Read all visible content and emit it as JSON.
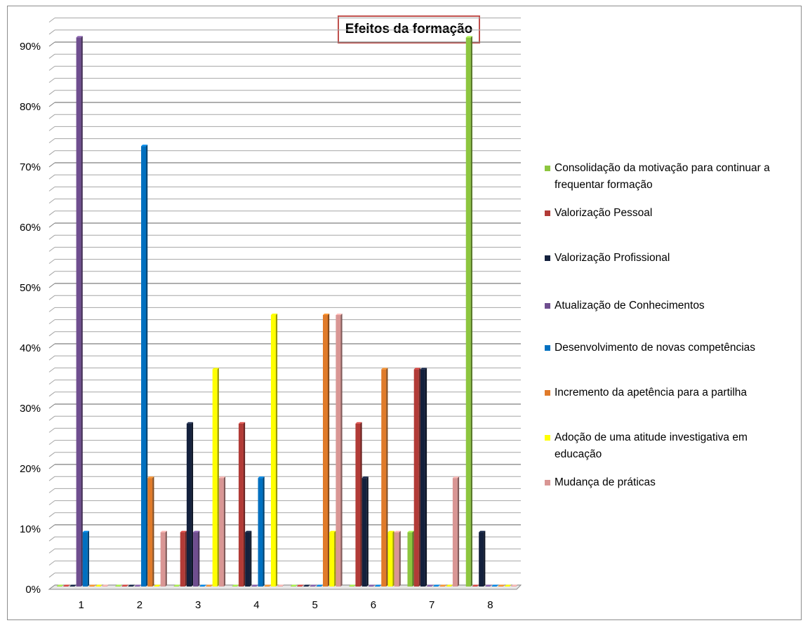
{
  "chart_data": {
    "type": "bar",
    "title": "Efeitos da formação",
    "categories": [
      "1",
      "2",
      "3",
      "4",
      "5",
      "6",
      "7",
      "8"
    ],
    "y_ticks": [
      "0%",
      "10%",
      "20%",
      "30%",
      "40%",
      "50%",
      "60%",
      "70%",
      "80%",
      "90%"
    ],
    "ylim": [
      0,
      0.9
    ],
    "grid": true,
    "legend_position": "right",
    "series": [
      {
        "name": "Consolidação da motivação para continuar a frequentar formação",
        "color": "#8dc63f",
        "values": [
          0,
          0,
          0,
          0,
          0,
          0,
          0.09,
          0.91
        ]
      },
      {
        "name": "Valorização Pessoal",
        "color": "#b23b37",
        "values": [
          0,
          0,
          0.09,
          0.27,
          0,
          0.27,
          0.36,
          0
        ]
      },
      {
        "name": "Valorização Profissional",
        "color": "#14213d",
        "values": [
          0,
          0,
          0.27,
          0.09,
          0,
          0.18,
          0.36,
          0.09
        ]
      },
      {
        "name": "Atualização de Conhecimentos",
        "color": "#6f4e8f",
        "values": [
          0.91,
          0,
          0.09,
          0,
          0,
          0,
          0,
          0
        ]
      },
      {
        "name": "Desenvolvimento de novas competências",
        "color": "#0070c0",
        "values": [
          0.09,
          0.73,
          0,
          0.18,
          0,
          0,
          0,
          0
        ]
      },
      {
        "name": "Incremento da apetência para a partilha",
        "color": "#e07b2a",
        "values": [
          0,
          0.18,
          0,
          0,
          0.45,
          0.36,
          0,
          0
        ]
      },
      {
        "name": "Adoção de uma atitude investigativa em educação",
        "color": "#ffff00",
        "values": [
          0,
          0,
          0.36,
          0.45,
          0.09,
          0.09,
          0,
          0
        ]
      },
      {
        "name": "Mudança de práticas",
        "color": "#d99694",
        "values": [
          0,
          0.09,
          0.18,
          0,
          0.45,
          0.09,
          0.18,
          0
        ]
      }
    ]
  }
}
